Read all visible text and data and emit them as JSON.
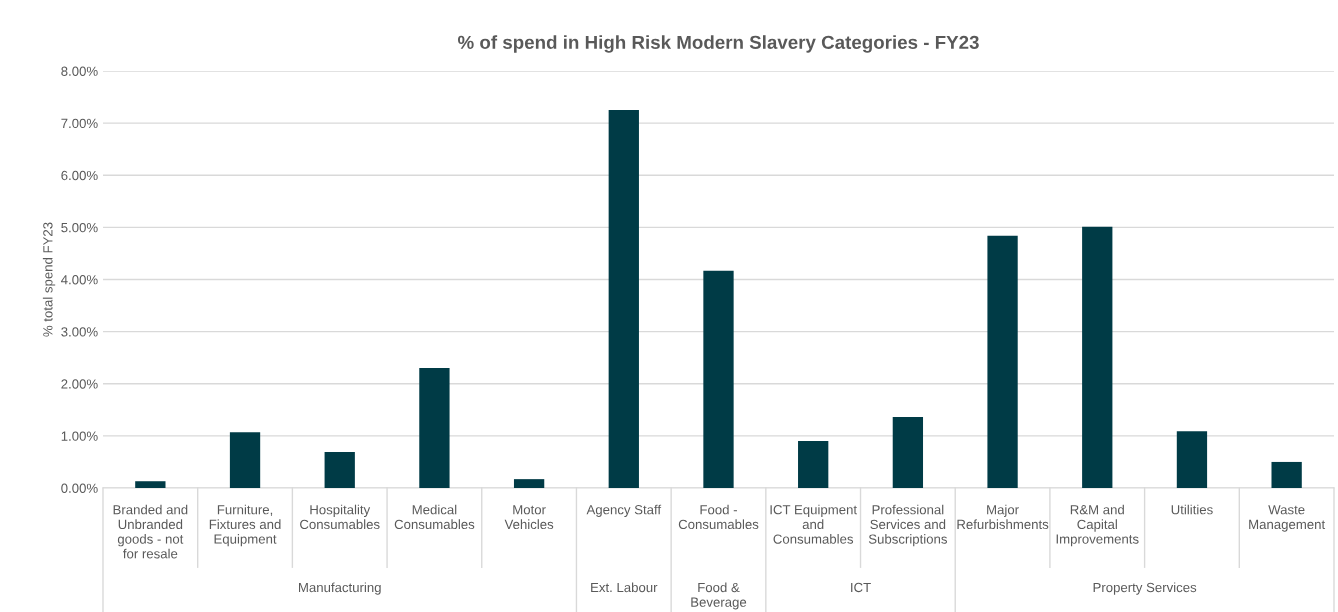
{
  "chart_data": {
    "type": "bar",
    "title": "% of spend in High Risk Modern Slavery Categories - FY23",
    "ylabel": "% total spend FY23",
    "categories": [
      "Branded and Unbranded goods - not for resale",
      "Furniture, Fixtures and Equipment",
      "Hospitality Consumables",
      "Medical Consumables",
      "Motor Vehicles",
      "Agency Staff",
      "Food - Consumables",
      "ICT Equipment and Consumables",
      "Professional Services and Subscriptions",
      "Major Refurbishments",
      "R&M and Capital Improvements",
      "Utilities",
      "Waste Management"
    ],
    "values": [
      0.13,
      1.07,
      0.69,
      2.3,
      0.17,
      7.25,
      4.17,
      0.9,
      1.36,
      4.84,
      5.01,
      1.09,
      0.5
    ],
    "color": "#003b46",
    "ylim": [
      0,
      8
    ],
    "yticks": [
      {
        "value": 0,
        "label": "0.00%"
      },
      {
        "value": 1,
        "label": "1.00%"
      },
      {
        "value": 2,
        "label": "2.00%"
      },
      {
        "value": 3,
        "label": "3.00%"
      },
      {
        "value": 4,
        "label": "4.00%"
      },
      {
        "value": 5,
        "label": "5.00%"
      },
      {
        "value": 6,
        "label": "6.00%"
      },
      {
        "value": 7,
        "label": "7.00%"
      },
      {
        "value": 8,
        "label": "8.00%"
      }
    ],
    "grid": "y",
    "annotations": [
      "Manufacturing",
      "Ext. Labour",
      "Food & Beverage",
      "ICT",
      "Property Services"
    ]
  }
}
